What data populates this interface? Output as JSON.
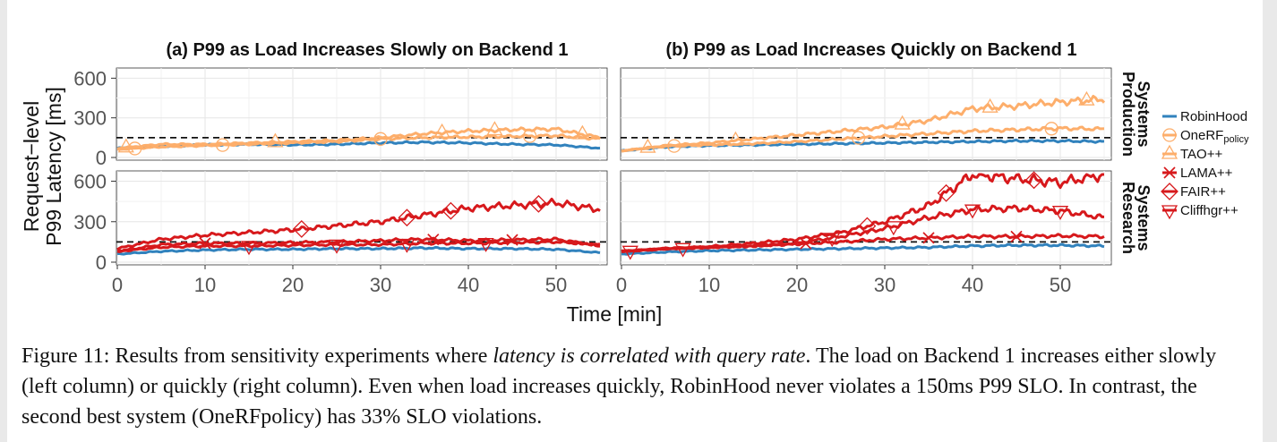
{
  "chart_data": {
    "type": "line",
    "ylabel": [
      "Request−level",
      "P99 Latency [ms]"
    ],
    "xlabel": "Time [min]",
    "xlim": [
      0,
      55
    ],
    "ylim": [
      0,
      650
    ],
    "xticks": [
      0,
      10,
      20,
      30,
      40,
      50
    ],
    "yticks": [
      0,
      300,
      600
    ],
    "slo_threshold": 150,
    "columns": [
      "(a) P99 as Load Increases Slowly on Backend 1",
      "(b) P99 as Load Increases Quickly on Backend 1"
    ],
    "rows": [
      "Production Systems",
      "Research Systems"
    ],
    "legend": {
      "position": "right",
      "entries": [
        {
          "label": "RobinHood",
          "marker": "line",
          "color": "#3182bd"
        },
        {
          "label": "OneRF",
          "subscript": "policy",
          "marker": "circle",
          "color": "#fdae6b"
        },
        {
          "label": "TAO++",
          "marker": "triangle",
          "color": "#fdae6b"
        },
        {
          "label": "LAMA++",
          "marker": "cross",
          "color": "#d7191c"
        },
        {
          "label": "FAIR++",
          "marker": "diamond",
          "color": "#d7191c"
        },
        {
          "label": "Cliffhgr++",
          "marker": "triangle-down",
          "color": "#d7191c"
        }
      ]
    },
    "panels": [
      {
        "column": 0,
        "row": 0,
        "series": [
          {
            "name": "RobinHood",
            "color": "#3182bd",
            "marker": "none",
            "x": [
              0,
              5,
              10,
              15,
              20,
              25,
              30,
              35,
              40,
              45,
              50,
              55
            ],
            "y": [
              70,
              85,
              95,
              100,
              95,
              100,
              110,
              115,
              110,
              100,
              95,
              70
            ]
          },
          {
            "name": "OneRFpolicy",
            "color": "#fdae6b",
            "marker": "circle",
            "x": [
              0,
              5,
              10,
              15,
              20,
              25,
              30,
              35,
              40,
              45,
              50,
              55
            ],
            "y": [
              60,
              80,
              90,
              100,
              110,
              120,
              140,
              150,
              155,
              160,
              165,
              140
            ]
          },
          {
            "name": "TAO++",
            "color": "#fdae6b",
            "marker": "triangle",
            "x": [
              0,
              5,
              10,
              15,
              20,
              25,
              30,
              35,
              40,
              45,
              50,
              55
            ],
            "y": [
              70,
              100,
              100,
              110,
              120,
              130,
              150,
              180,
              200,
              210,
              215,
              150
            ]
          }
        ],
        "markers": [
          {
            "series": 1,
            "x": [
              2,
              12,
              30,
              47
            ]
          },
          {
            "series": 2,
            "x": [
              1,
              18,
              37,
              43,
              53
            ]
          }
        ]
      },
      {
        "column": 1,
        "row": 0,
        "series": [
          {
            "name": "RobinHood",
            "color": "#3182bd",
            "marker": "none",
            "x": [
              0,
              5,
              10,
              15,
              20,
              25,
              30,
              35,
              40,
              45,
              50,
              55
            ],
            "y": [
              50,
              80,
              90,
              95,
              100,
              105,
              110,
              115,
              120,
              125,
              125,
              120
            ]
          },
          {
            "name": "OneRFpolicy",
            "color": "#fdae6b",
            "marker": "circle",
            "x": [
              0,
              5,
              10,
              15,
              20,
              25,
              30,
              35,
              40,
              45,
              50,
              55
            ],
            "y": [
              50,
              85,
              95,
              105,
              120,
              140,
              160,
              180,
              200,
              210,
              220,
              215
            ]
          },
          {
            "name": "TAO++",
            "color": "#fdae6b",
            "marker": "triangle",
            "x": [
              0,
              5,
              10,
              15,
              20,
              25,
              30,
              35,
              40,
              45,
              50,
              55
            ],
            "y": [
              50,
              90,
              110,
              140,
              170,
              200,
              230,
              280,
              370,
              390,
              420,
              440
            ]
          }
        ],
        "markers": [
          {
            "series": 1,
            "x": [
              6,
              27,
              49
            ]
          },
          {
            "series": 2,
            "x": [
              3,
              13,
              32,
              42,
              53
            ]
          }
        ]
      },
      {
        "column": 0,
        "row": 1,
        "series": [
          {
            "name": "RobinHood",
            "color": "#3182bd",
            "marker": "none",
            "x": [
              0,
              5,
              10,
              15,
              20,
              25,
              30,
              35,
              40,
              45,
              50,
              55
            ],
            "y": [
              60,
              80,
              90,
              95,
              95,
              100,
              100,
              105,
              100,
              100,
              95,
              70
            ]
          },
          {
            "name": "LAMA++",
            "color": "#d7191c",
            "marker": "cross",
            "x": [
              0,
              5,
              10,
              15,
              20,
              25,
              30,
              35,
              40,
              45,
              50,
              55
            ],
            "y": [
              80,
              130,
              140,
              140,
              145,
              150,
              160,
              170,
              160,
              165,
              170,
              120
            ]
          },
          {
            "name": "FAIR++",
            "color": "#d7191c",
            "marker": "diamond",
            "x": [
              0,
              5,
              10,
              15,
              20,
              25,
              30,
              35,
              40,
              45,
              50,
              55
            ],
            "y": [
              100,
              170,
              200,
              220,
              240,
              270,
              300,
              350,
              400,
              420,
              440,
              390
            ]
          },
          {
            "name": "Cliffhgr++",
            "color": "#d7191c",
            "marker": "triangle-down",
            "x": [
              0,
              5,
              10,
              15,
              20,
              25,
              30,
              35,
              40,
              45,
              50,
              55
            ],
            "y": [
              80,
              110,
              120,
              120,
              125,
              130,
              130,
              140,
              140,
              145,
              150,
              130
            ]
          }
        ],
        "markers": [
          {
            "series": 1,
            "x": [
              10,
              36,
              45
            ]
          },
          {
            "series": 2,
            "x": [
              21,
              33,
              38,
              48
            ]
          },
          {
            "series": 3,
            "x": [
              15,
              25,
              33,
              42
            ]
          }
        ]
      },
      {
        "column": 1,
        "row": 1,
        "series": [
          {
            "name": "RobinHood",
            "color": "#3182bd",
            "marker": "none",
            "x": [
              0,
              5,
              10,
              15,
              20,
              25,
              30,
              35,
              40,
              45,
              50,
              55
            ],
            "y": [
              60,
              75,
              85,
              90,
              95,
              100,
              105,
              110,
              120,
              125,
              125,
              120
            ]
          },
          {
            "name": "LAMA++",
            "color": "#d7191c",
            "marker": "cross",
            "x": [
              0,
              5,
              10,
              15,
              20,
              25,
              30,
              35,
              40,
              45,
              50,
              55
            ],
            "y": [
              80,
              100,
              110,
              120,
              135,
              150,
              170,
              180,
              190,
              190,
              195,
              190
            ]
          },
          {
            "name": "FAIR++",
            "color": "#d7191c",
            "marker": "diamond",
            "x": [
              0,
              5,
              10,
              15,
              20,
              25,
              30,
              35,
              40,
              45,
              50,
              55
            ],
            "y": [
              80,
              100,
              115,
              140,
              170,
              220,
              300,
              420,
              650,
              620,
              590,
              650
            ]
          },
          {
            "name": "Cliffhgr++",
            "color": "#d7191c",
            "marker": "triangle-down",
            "x": [
              0,
              5,
              10,
              15,
              20,
              25,
              30,
              35,
              40,
              45,
              50,
              55
            ],
            "y": [
              80,
              100,
              110,
              120,
              140,
              190,
              250,
              330,
              390,
              400,
              380,
              330
            ]
          }
        ],
        "markers": [
          {
            "series": 1,
            "x": [
              21,
              35,
              45
            ]
          },
          {
            "series": 2,
            "x": [
              28,
              37,
              47
            ]
          },
          {
            "series": 3,
            "x": [
              1,
              7,
              24,
              31,
              40,
              50
            ]
          }
        ]
      }
    ]
  },
  "caption": {
    "lead": "Figure 11: Results from sensitivity experiments where ",
    "emph": "latency is correlated with query rate",
    "rest": ". The load on Backend 1 increases either slowly (left column) or quickly (right column). Even when load increases quickly, RobinHood never violates a 150ms P99 SLO. In contrast, the second best system (OneRFpolicy) has 33% SLO violations."
  }
}
